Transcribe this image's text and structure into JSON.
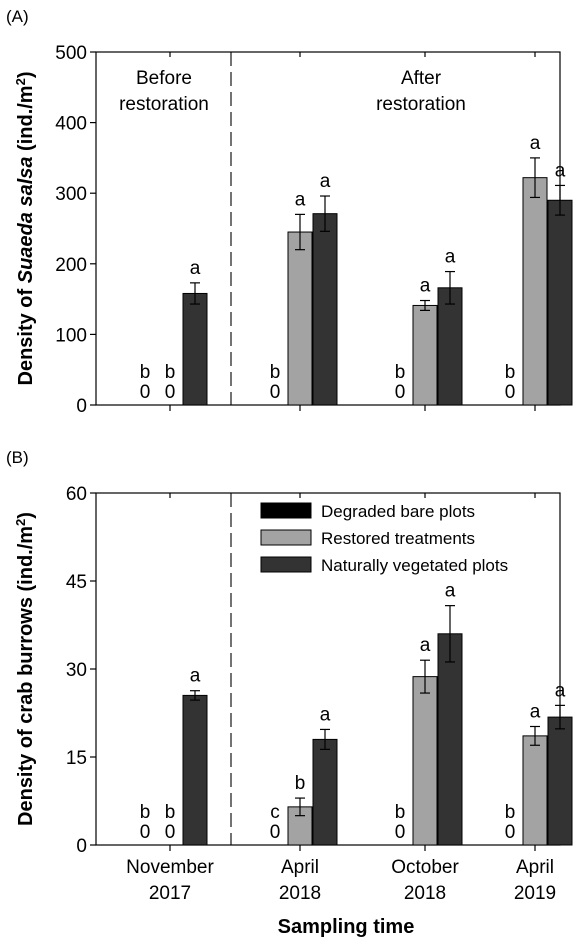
{
  "chart_data": [
    {
      "type": "bar",
      "panel_label": "(A)",
      "ylabel": "Density of Suaeda salsa (ind./m²)",
      "ylabel_parts": [
        "Density of ",
        "Suaeda salsa",
        " (ind./m",
        "2",
        ")"
      ],
      "ylim": [
        0,
        500
      ],
      "yticks": [
        "0",
        "100",
        "200",
        "300",
        "400",
        "500"
      ],
      "categories": [
        "November 2017",
        "April 2018",
        "October 2018",
        "April 2019"
      ],
      "annotations": [
        {
          "lines": [
            "Before",
            "restoration"
          ]
        },
        {
          "lines": [
            "After",
            "restoration"
          ]
        }
      ],
      "series": [
        {
          "name": "Degraded bare plots",
          "color": "#000000",
          "values": [
            0,
            0,
            0,
            0
          ],
          "errors": [
            0,
            0,
            0,
            0
          ],
          "letters": [
            "b",
            "b",
            "b",
            "b"
          ]
        },
        {
          "name": "Restored treatments",
          "color": "#a3a3a3",
          "values": [
            0,
            245,
            141,
            322
          ],
          "errors": [
            0,
            25,
            7,
            28
          ],
          "letters": [
            "b",
            "a",
            "a",
            "a"
          ]
        },
        {
          "name": "Naturally vegetated plots",
          "color": "#333333",
          "values": [
            158,
            271,
            166,
            290
          ],
          "errors": [
            15,
            25,
            23,
            21
          ],
          "letters": [
            "a",
            "a",
            "a",
            "a"
          ]
        }
      ]
    },
    {
      "type": "bar",
      "panel_label": "(B)",
      "ylabel": "Density of crab burrows (ind./m²)",
      "ylabel_parts": [
        "Density of crab burrows (ind./m",
        "2",
        ")"
      ],
      "ylim": [
        0,
        60
      ],
      "yticks": [
        "0",
        "15",
        "30",
        "45",
        "60"
      ],
      "categories": [
        "November 2017",
        "April 2018",
        "October 2018",
        "April 2019"
      ],
      "xtick_lines": [
        [
          "November",
          "2017"
        ],
        [
          "April",
          "2018"
        ],
        [
          "October",
          "2018"
        ],
        [
          "April",
          "2019"
        ]
      ],
      "xlabel": "Sampling time",
      "legend_position": "top-right",
      "series": [
        {
          "name": "Degraded bare plots",
          "color": "#000000",
          "values": [
            0,
            0,
            0,
            0
          ],
          "errors": [
            0,
            0,
            0,
            0
          ],
          "letters": [
            "b",
            "c",
            "b",
            "b"
          ]
        },
        {
          "name": "Restored treatments",
          "color": "#a3a3a3",
          "values": [
            0,
            6.5,
            28.7,
            18.6
          ],
          "errors": [
            0,
            1.5,
            2.8,
            1.6
          ],
          "letters": [
            "b",
            "b",
            "a",
            "a"
          ]
        },
        {
          "name": "Naturally vegetated plots",
          "color": "#333333",
          "values": [
            25.5,
            18.0,
            36.0,
            21.8
          ],
          "errors": [
            0.8,
            1.7,
            4.8,
            2.0
          ],
          "letters": [
            "a",
            "a",
            "a",
            "a"
          ]
        }
      ]
    }
  ]
}
